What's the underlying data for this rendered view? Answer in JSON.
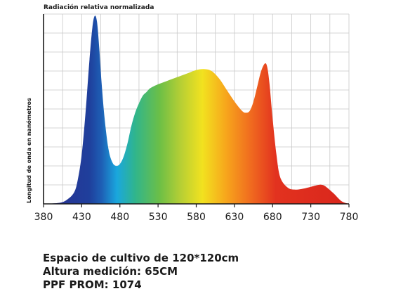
{
  "chart_data": {
    "type": "area",
    "title": "Radiación relativa normalizada",
    "ylabel": "Longitud de onda en nanómetros",
    "xlabel": "",
    "xlim": [
      380,
      780
    ],
    "ylim": [
      0,
      10
    ],
    "x_ticks": [
      "380",
      "430",
      "480",
      "530",
      "580",
      "630",
      "680",
      "730",
      "780"
    ],
    "grid": true,
    "fill": "visible-spectrum-gradient",
    "x": [
      380,
      400,
      410,
      420,
      425,
      430,
      435,
      440,
      444,
      447,
      450,
      453,
      456,
      460,
      465,
      470,
      475,
      480,
      485,
      490,
      495,
      500,
      505,
      510,
      515,
      520,
      530,
      540,
      550,
      560,
      570,
      580,
      590,
      600,
      610,
      620,
      630,
      640,
      645,
      650,
      655,
      660,
      665,
      670,
      673,
      676,
      680,
      685,
      690,
      700,
      710,
      720,
      730,
      740,
      745,
      750,
      760,
      770,
      780
    ],
    "series": [
      {
        "values": [
          0,
          0.05,
          0.2,
          0.6,
          1.3,
          2.6,
          4.8,
          7.5,
          9.3,
          9.9,
          9.6,
          8.2,
          6.4,
          4.5,
          2.9,
          2.2,
          2.0,
          2.1,
          2.5,
          3.2,
          4.1,
          4.8,
          5.3,
          5.7,
          5.9,
          6.1,
          6.3,
          6.45,
          6.6,
          6.75,
          6.9,
          7.05,
          7.1,
          7.0,
          6.6,
          6.0,
          5.4,
          4.9,
          4.8,
          4.9,
          5.4,
          6.2,
          7.0,
          7.4,
          7.2,
          6.3,
          4.5,
          2.6,
          1.4,
          0.85,
          0.75,
          0.8,
          0.9,
          1.0,
          1.0,
          0.9,
          0.55,
          0.15,
          0
        ]
      }
    ]
  },
  "notes": {
    "line1": "Espacio de cultivo de 120*120cm",
    "line2": "Altura medición: 65CM",
    "line3": "PPF PROM: 1074"
  }
}
